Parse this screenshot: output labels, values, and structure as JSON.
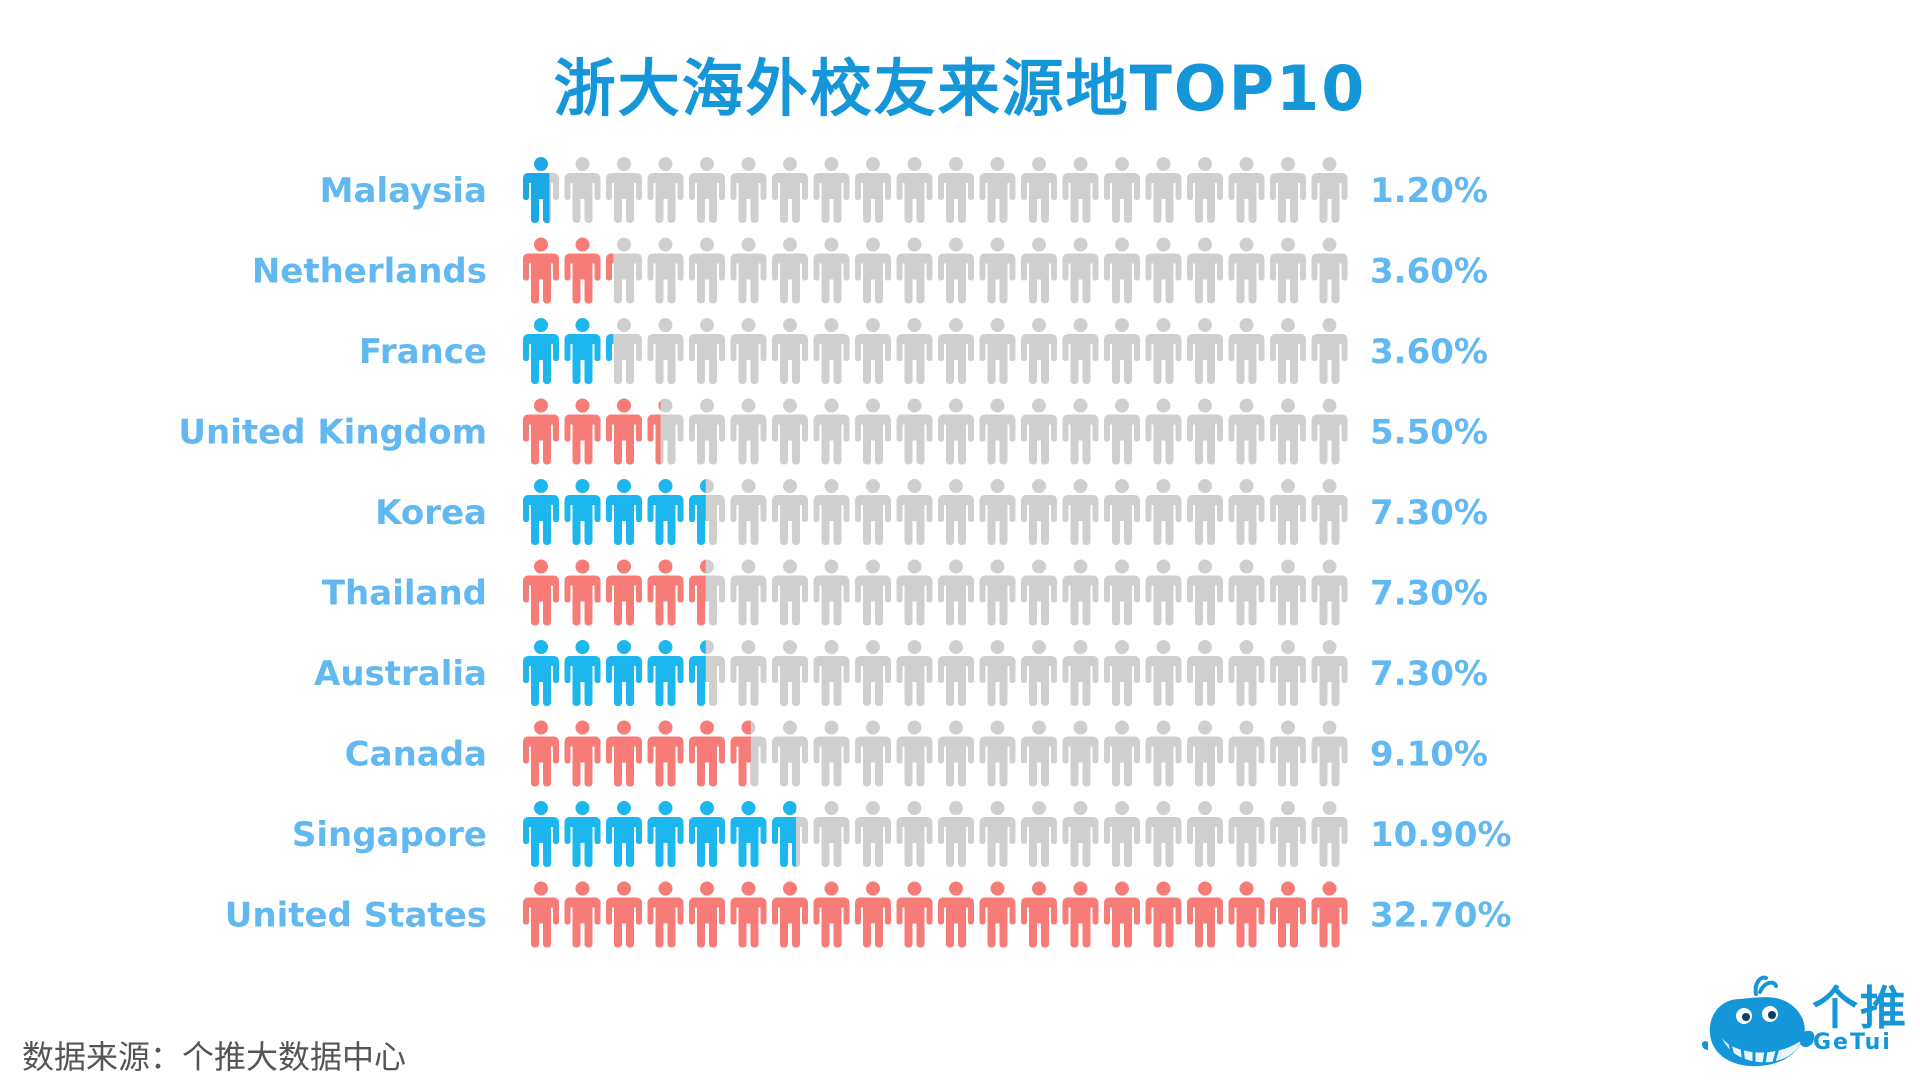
{
  "chart_data": {
    "type": "bar",
    "title": "浙大海外校友来源地TOP10",
    "categories": [
      "Malaysia",
      "Netherlands",
      "France",
      "United Kingdom",
      "Korea",
      "Thailand",
      "Australia",
      "Canada",
      "Singapore",
      "United States"
    ],
    "values": [
      1.2,
      3.6,
      3.6,
      5.5,
      7.3,
      7.3,
      7.3,
      9.1,
      10.9,
      32.7
    ],
    "value_labels": [
      "1.20%",
      "3.60%",
      "3.60%",
      "5.50%",
      "7.30%",
      "7.30%",
      "7.30%",
      "9.10%",
      "10.90%",
      "32.70%"
    ],
    "colors": [
      "#1BA9E6",
      "#F77C78",
      "#1BB7EE",
      "#F77C78",
      "#1BB7EE",
      "#F77C78",
      "#1BB7EE",
      "#F77C78",
      "#1BB7EE",
      "#F77C78"
    ],
    "icons_per_row": 20,
    "percent_per_icon": 1.635,
    "icon": "person-icon",
    "empty_color": "#CFCFCF",
    "label_color": "#62B8F0"
  },
  "footer": {
    "source": "数据来源：个推大数据中心"
  },
  "logo": {
    "name_cn": "个推",
    "name_en": "GeTui",
    "icon": "whale-logo-icon",
    "color": "#1496D8"
  }
}
